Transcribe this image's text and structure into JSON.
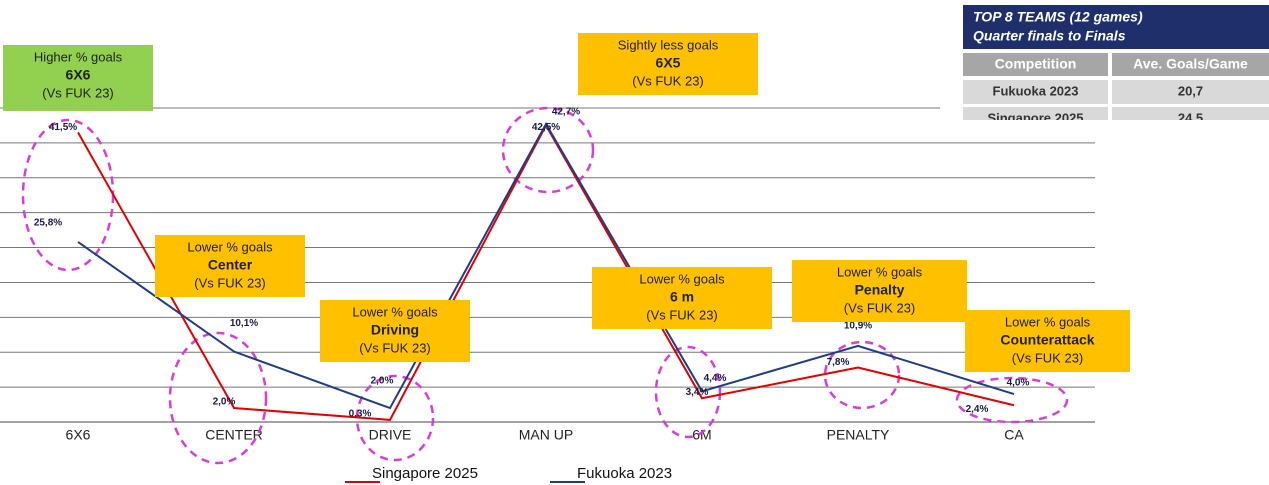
{
  "chart_data": {
    "type": "line",
    "categories": [
      "6X6",
      "CENTER",
      "DRIVE",
      "MAN UP",
      "6M",
      "PENALTY",
      "CA"
    ],
    "series": [
      {
        "name": "Singapore 2025",
        "color": "#e00000",
        "values": [
          41.5,
          2.0,
          0.3,
          42.5,
          3.4,
          7.8,
          2.4
        ],
        "value_labels": [
          "41,5%",
          "2,0%",
          "0,3%",
          "42,5%",
          "3,4%",
          "7,8%",
          "2,4%"
        ]
      },
      {
        "name": "Fukuoka 2023",
        "color": "#1f3c88",
        "values": [
          25.8,
          10.1,
          2.0,
          42.7,
          4.4,
          10.9,
          4.0
        ],
        "value_labels": [
          "25,8%",
          "10,1%",
          "2,0%",
          "42,7%",
          "4,4%",
          "10,9%",
          "4,0%"
        ]
      }
    ],
    "ylim": [
      0,
      45
    ],
    "yticks": [
      0,
      5,
      10,
      15,
      20,
      25,
      30,
      35,
      40,
      45
    ],
    "grid": true,
    "annotations": [
      {
        "lines": [
          "Higher % goals",
          "6X6",
          "(Vs FUK 23)"
        ],
        "color": "#92d050"
      },
      {
        "lines": [
          "Sightly less goals",
          "6X5",
          "(Vs FUK 23)"
        ],
        "color": "#ffc000"
      },
      {
        "lines": [
          "Lower % goals",
          "Center",
          "(Vs FUK 23)"
        ],
        "color": "#ffc000"
      },
      {
        "lines": [
          "Lower % goals",
          "Driving",
          "(Vs FUK 23)"
        ],
        "color": "#ffc000"
      },
      {
        "lines": [
          "Lower % goals",
          "6 m",
          "(Vs FUK 23)"
        ],
        "color": "#ffc000"
      },
      {
        "lines": [
          "Lower % goals",
          "Penalty",
          "(Vs FUK 23)"
        ],
        "color": "#ffc000"
      },
      {
        "lines": [
          "Lower % goals",
          "Counterattack",
          "(Vs FUK 23)"
        ],
        "color": "#ffc000"
      }
    ]
  },
  "table": {
    "title": "TOP 8 TEAMS (12 games)",
    "subtitle": "Quarter finals to Finals",
    "header": [
      "Competition",
      "Ave. Goals/Game"
    ],
    "rows": [
      [
        "Fukuoka 2023",
        "20,7"
      ],
      [
        "Singapore  2025",
        "24,5"
      ]
    ]
  }
}
